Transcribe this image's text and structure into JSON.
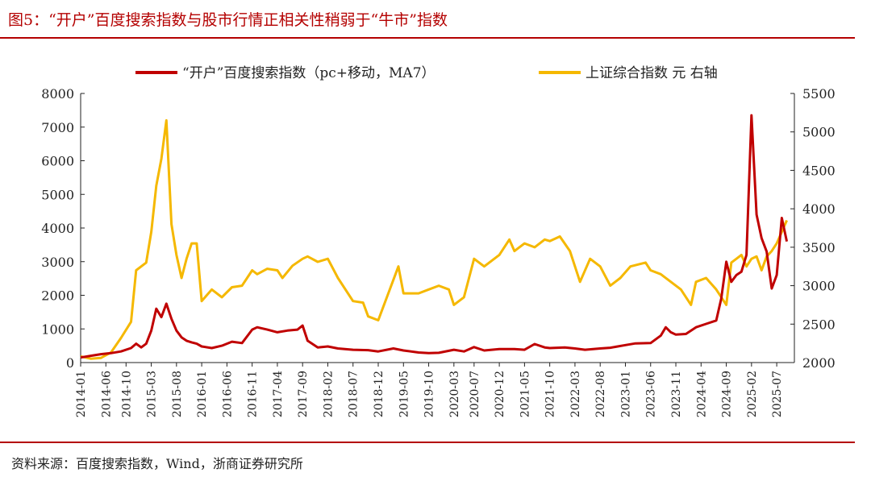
{
  "title": "图5：“开户”百度搜索指数与股市行情正相关性稍弱于“牛市”指数",
  "source": "资料来源：百度搜索指数，Wind，浙商证券研究所",
  "colors": {
    "accent": "#b40000",
    "series_red": "#c00000",
    "series_gold": "#f5b800"
  },
  "chart_data": {
    "type": "line",
    "legend_position": "top-center",
    "grid": false,
    "x_ticks": [
      "2014-01",
      "2014-06",
      "2014-10",
      "2015-03",
      "2015-08",
      "2016-01",
      "2016-06",
      "2016-11",
      "2017-04",
      "2017-09",
      "2018-02",
      "2018-07",
      "2018-12",
      "2019-05",
      "2019-10",
      "2020-03",
      "2020-07",
      "2020-12",
      "2021-05",
      "2021-10",
      "2022-03",
      "2022-08",
      "2023-01",
      "2023-06",
      "2023-11",
      "2024-04",
      "2024-09",
      "2025-02",
      "2025-07"
    ],
    "y_left": {
      "min": 0,
      "max": 8000,
      "ticks": [
        0,
        1000,
        2000,
        3000,
        4000,
        5000,
        6000,
        7000,
        8000
      ]
    },
    "y_right": {
      "min": 2000,
      "max": 5500,
      "ticks": [
        2000,
        2500,
        3000,
        3500,
        4000,
        4500,
        5000,
        5500
      ]
    },
    "series": [
      {
        "name": "“开户”百度搜索指数（pc+移动，MA7）",
        "axis": "left",
        "color": "#c00000",
        "points": [
          [
            "2014-01",
            150
          ],
          [
            "2014-03",
            200
          ],
          [
            "2014-05",
            250
          ],
          [
            "2014-07",
            280
          ],
          [
            "2014-09",
            330
          ],
          [
            "2014-11",
            430
          ],
          [
            "2014-12",
            560
          ],
          [
            "2015-01",
            450
          ],
          [
            "2015-02",
            560
          ],
          [
            "2015-03",
            950
          ],
          [
            "2015-04",
            1600
          ],
          [
            "2015-05",
            1350
          ],
          [
            "2015-06",
            1750
          ],
          [
            "2015-07",
            1300
          ],
          [
            "2015-08",
            950
          ],
          [
            "2015-09",
            750
          ],
          [
            "2015-10",
            650
          ],
          [
            "2015-11",
            600
          ],
          [
            "2015-12",
            560
          ],
          [
            "2016-01",
            480
          ],
          [
            "2016-03",
            430
          ],
          [
            "2016-05",
            500
          ],
          [
            "2016-07",
            620
          ],
          [
            "2016-09",
            580
          ],
          [
            "2016-11",
            980
          ],
          [
            "2016-12",
            1050
          ],
          [
            "2017-02",
            980
          ],
          [
            "2017-04",
            900
          ],
          [
            "2017-06",
            950
          ],
          [
            "2017-08",
            980
          ],
          [
            "2017-09",
            1100
          ],
          [
            "2017-10",
            650
          ],
          [
            "2017-12",
            450
          ],
          [
            "2018-02",
            480
          ],
          [
            "2018-04",
            420
          ],
          [
            "2018-07",
            380
          ],
          [
            "2018-10",
            370
          ],
          [
            "2018-12",
            330
          ],
          [
            "2019-03",
            420
          ],
          [
            "2019-05",
            360
          ],
          [
            "2019-08",
            300
          ],
          [
            "2019-10",
            280
          ],
          [
            "2019-12",
            290
          ],
          [
            "2020-03",
            380
          ],
          [
            "2020-05",
            330
          ],
          [
            "2020-07",
            460
          ],
          [
            "2020-09",
            360
          ],
          [
            "2020-12",
            400
          ],
          [
            "2021-03",
            400
          ],
          [
            "2021-05",
            380
          ],
          [
            "2021-07",
            550
          ],
          [
            "2021-09",
            450
          ],
          [
            "2021-10",
            430
          ],
          [
            "2022-01",
            450
          ],
          [
            "2022-03",
            420
          ],
          [
            "2022-05",
            380
          ],
          [
            "2022-08",
            420
          ],
          [
            "2022-10",
            440
          ],
          [
            "2023-01",
            520
          ],
          [
            "2023-03",
            570
          ],
          [
            "2023-06",
            580
          ],
          [
            "2023-08",
            800
          ],
          [
            "2023-09",
            1050
          ],
          [
            "2023-10",
            900
          ],
          [
            "2023-11",
            830
          ],
          [
            "2024-01",
            850
          ],
          [
            "2024-03",
            1050
          ],
          [
            "2024-05",
            1150
          ],
          [
            "2024-07",
            1250
          ],
          [
            "2024-08",
            1900
          ],
          [
            "2024-09",
            3000
          ],
          [
            "2024-10",
            2400
          ],
          [
            "2024-11",
            2600
          ],
          [
            "2024-12",
            2700
          ],
          [
            "2025-01",
            3200
          ],
          [
            "2025-02",
            7350
          ],
          [
            "2025-03",
            4400
          ],
          [
            "2025-04",
            3700
          ],
          [
            "2025-05",
            3300
          ],
          [
            "2025-06",
            2200
          ],
          [
            "2025-07",
            2600
          ],
          [
            "2025-08",
            4300
          ],
          [
            "2025-09",
            3600
          ]
        ]
      },
      {
        "name": "上证综合指数 元 右轴",
        "axis": "right",
        "color": "#f5b800",
        "points": [
          [
            "2014-01",
            2080
          ],
          [
            "2014-03",
            2050
          ],
          [
            "2014-05",
            2060
          ],
          [
            "2014-07",
            2130
          ],
          [
            "2014-09",
            2320
          ],
          [
            "2014-11",
            2530
          ],
          [
            "2014-12",
            3200
          ],
          [
            "2015-01",
            3250
          ],
          [
            "2015-02",
            3300
          ],
          [
            "2015-03",
            3700
          ],
          [
            "2015-04",
            4300
          ],
          [
            "2015-05",
            4650
          ],
          [
            "2015-06",
            5150
          ],
          [
            "2015-07",
            3800
          ],
          [
            "2015-08",
            3400
          ],
          [
            "2015-09",
            3100
          ],
          [
            "2015-10",
            3350
          ],
          [
            "2015-11",
            3550
          ],
          [
            "2015-12",
            3550
          ],
          [
            "2016-01",
            2800
          ],
          [
            "2016-03",
            2950
          ],
          [
            "2016-05",
            2850
          ],
          [
            "2016-07",
            2980
          ],
          [
            "2016-09",
            3000
          ],
          [
            "2016-11",
            3200
          ],
          [
            "2016-12",
            3150
          ],
          [
            "2017-02",
            3220
          ],
          [
            "2017-04",
            3200
          ],
          [
            "2017-05",
            3100
          ],
          [
            "2017-07",
            3260
          ],
          [
            "2017-09",
            3350
          ],
          [
            "2017-10",
            3380
          ],
          [
            "2017-12",
            3310
          ],
          [
            "2018-02",
            3350
          ],
          [
            "2018-04",
            3100
          ],
          [
            "2018-07",
            2800
          ],
          [
            "2018-09",
            2780
          ],
          [
            "2018-10",
            2600
          ],
          [
            "2018-12",
            2550
          ],
          [
            "2019-02",
            2900
          ],
          [
            "2019-04",
            3250
          ],
          [
            "2019-05",
            2900
          ],
          [
            "2019-08",
            2900
          ],
          [
            "2019-10",
            2950
          ],
          [
            "2019-12",
            3000
          ],
          [
            "2020-02",
            2950
          ],
          [
            "2020-03",
            2750
          ],
          [
            "2020-05",
            2850
          ],
          [
            "2020-07",
            3350
          ],
          [
            "2020-09",
            3250
          ],
          [
            "2020-12",
            3400
          ],
          [
            "2021-02",
            3600
          ],
          [
            "2021-03",
            3450
          ],
          [
            "2021-05",
            3550
          ],
          [
            "2021-07",
            3500
          ],
          [
            "2021-09",
            3600
          ],
          [
            "2021-10",
            3580
          ],
          [
            "2021-12",
            3640
          ],
          [
            "2022-02",
            3450
          ],
          [
            "2022-04",
            3050
          ],
          [
            "2022-06",
            3350
          ],
          [
            "2022-08",
            3250
          ],
          [
            "2022-10",
            3000
          ],
          [
            "2022-12",
            3100
          ],
          [
            "2023-02",
            3250
          ],
          [
            "2023-05",
            3300
          ],
          [
            "2023-06",
            3200
          ],
          [
            "2023-08",
            3150
          ],
          [
            "2023-10",
            3050
          ],
          [
            "2023-12",
            2950
          ],
          [
            "2024-02",
            2750
          ],
          [
            "2024-03",
            3050
          ],
          [
            "2024-05",
            3100
          ],
          [
            "2024-07",
            2950
          ],
          [
            "2024-09",
            2750
          ],
          [
            "2024-10",
            3300
          ],
          [
            "2024-11",
            3350
          ],
          [
            "2024-12",
            3400
          ],
          [
            "2025-01",
            3250
          ],
          [
            "2025-02",
            3350
          ],
          [
            "2025-03",
            3380
          ],
          [
            "2025-04",
            3200
          ],
          [
            "2025-05",
            3380
          ],
          [
            "2025-06",
            3450
          ],
          [
            "2025-07",
            3550
          ],
          [
            "2025-08",
            3700
          ],
          [
            "2025-09",
            3850
          ]
        ]
      }
    ]
  }
}
